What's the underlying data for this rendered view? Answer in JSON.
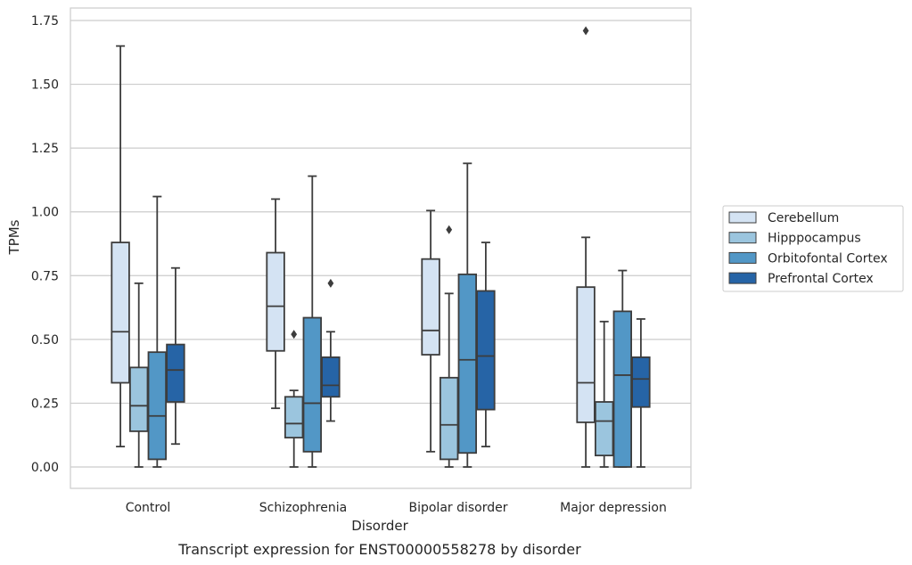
{
  "chart_data": {
    "type": "boxplot",
    "caption": "Transcript expression for ENST00000558278 by disorder",
    "xlabel": "Disorder",
    "ylabel": "TPMs",
    "ylim": [
      -0.08,
      1.8
    ],
    "yticks": [
      0.0,
      0.25,
      0.5,
      0.75,
      1.0,
      1.25,
      1.5,
      1.75
    ],
    "ytick_labels": [
      "0.00",
      "0.25",
      "0.50",
      "0.75",
      "1.00",
      "1.25",
      "1.50",
      "1.75"
    ],
    "grid": "horizontal",
    "legend_position": "right",
    "categories": [
      "Control",
      "Schizophrenia",
      "Bipolar disorder",
      "Major depression"
    ],
    "series": [
      {
        "name": "Cerebellum",
        "color": "#d4e3f3",
        "boxes": [
          {
            "whisker_low": 0.08,
            "q1": 0.33,
            "median": 0.53,
            "q3": 0.88,
            "whisker_high": 1.65,
            "outliers": []
          },
          {
            "whisker_low": 0.23,
            "q1": 0.455,
            "median": 0.63,
            "q3": 0.84,
            "whisker_high": 1.05,
            "outliers": []
          },
          {
            "whisker_low": 0.06,
            "q1": 0.44,
            "median": 0.535,
            "q3": 0.815,
            "whisker_high": 1.005,
            "outliers": []
          },
          {
            "whisker_low": 0.0,
            "q1": 0.175,
            "median": 0.33,
            "q3": 0.705,
            "whisker_high": 0.9,
            "outliers": [
              1.71
            ]
          }
        ]
      },
      {
        "name": "Hipppocampus",
        "color": "#9bc5de",
        "boxes": [
          {
            "whisker_low": 0.0,
            "q1": 0.14,
            "median": 0.24,
            "q3": 0.39,
            "whisker_high": 0.72,
            "outliers": []
          },
          {
            "whisker_low": 0.0,
            "q1": 0.115,
            "median": 0.17,
            "q3": 0.275,
            "whisker_high": 0.3,
            "outliers": [
              0.52
            ]
          },
          {
            "whisker_low": 0.0,
            "q1": 0.03,
            "median": 0.165,
            "q3": 0.35,
            "whisker_high": 0.68,
            "outliers": [
              0.93
            ]
          },
          {
            "whisker_low": 0.0,
            "q1": 0.045,
            "median": 0.18,
            "q3": 0.255,
            "whisker_high": 0.57,
            "outliers": []
          }
        ]
      },
      {
        "name": "Orbitofontal Cortex",
        "color": "#5297c6",
        "boxes": [
          {
            "whisker_low": 0.0,
            "q1": 0.03,
            "median": 0.2,
            "q3": 0.45,
            "whisker_high": 1.06,
            "outliers": []
          },
          {
            "whisker_low": 0.0,
            "q1": 0.06,
            "median": 0.25,
            "q3": 0.585,
            "whisker_high": 1.14,
            "outliers": []
          },
          {
            "whisker_low": 0.0,
            "q1": 0.055,
            "median": 0.42,
            "q3": 0.755,
            "whisker_high": 1.19,
            "outliers": []
          },
          {
            "whisker_low": 0.0,
            "q1": 0.0,
            "median": 0.36,
            "q3": 0.61,
            "whisker_high": 0.77,
            "outliers": []
          }
        ]
      },
      {
        "name": "Prefrontal Cortex",
        "color": "#2664a6",
        "boxes": [
          {
            "whisker_low": 0.09,
            "q1": 0.255,
            "median": 0.38,
            "q3": 0.48,
            "whisker_high": 0.78,
            "outliers": []
          },
          {
            "whisker_low": 0.18,
            "q1": 0.275,
            "median": 0.32,
            "q3": 0.43,
            "whisker_high": 0.53,
            "outliers": [
              0.72
            ]
          },
          {
            "whisker_low": 0.08,
            "q1": 0.225,
            "median": 0.435,
            "q3": 0.69,
            "whisker_high": 0.88,
            "outliers": []
          },
          {
            "whisker_low": 0.0,
            "q1": 0.235,
            "median": 0.345,
            "q3": 0.43,
            "whisker_high": 0.58,
            "outliers": []
          }
        ]
      }
    ]
  }
}
